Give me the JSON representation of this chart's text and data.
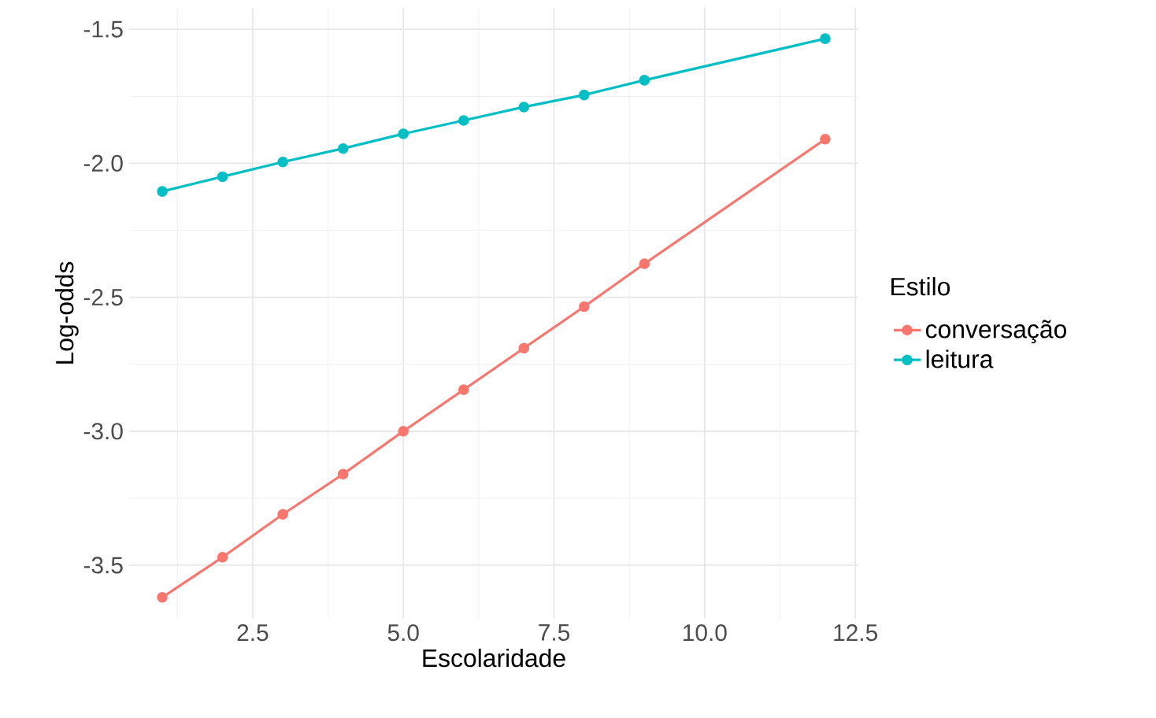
{
  "chart_data": {
    "type": "line",
    "xlabel": "Escolaridade",
    "ylabel": "Log-odds",
    "legend_title": "Estilo",
    "x": [
      1,
      2,
      3,
      4,
      5,
      6,
      7,
      8,
      9,
      12
    ],
    "series": [
      {
        "name": "conversação",
        "color": "#f8766d",
        "values": [
          -3.62,
          -3.47,
          -3.31,
          -3.16,
          -3.0,
          -2.845,
          -2.69,
          -2.535,
          -2.375,
          -1.91
        ]
      },
      {
        "name": "leitura",
        "color": "#00bfc4",
        "values": [
          -2.105,
          -2.05,
          -1.995,
          -1.945,
          -1.89,
          -1.84,
          -1.79,
          -1.745,
          -1.69,
          -1.535
        ]
      }
    ],
    "xlim": [
      0.45,
      12.55
    ],
    "ylim": [
      -3.7,
      -1.42
    ],
    "xticks": [
      2.5,
      {
        "value": 5,
        "label": "5.0"
      },
      7.5,
      {
        "value": 10,
        "label": "10.0"
      },
      12.5
    ],
    "yticks": [
      -3.5,
      {
        "value": -3,
        "label": "-3.0"
      },
      -2.5,
      {
        "value": -2,
        "label": "-2.0"
      },
      -1.5
    ],
    "grid": true,
    "legend": "right",
    "marker": "circle",
    "line_style": "solid"
  }
}
